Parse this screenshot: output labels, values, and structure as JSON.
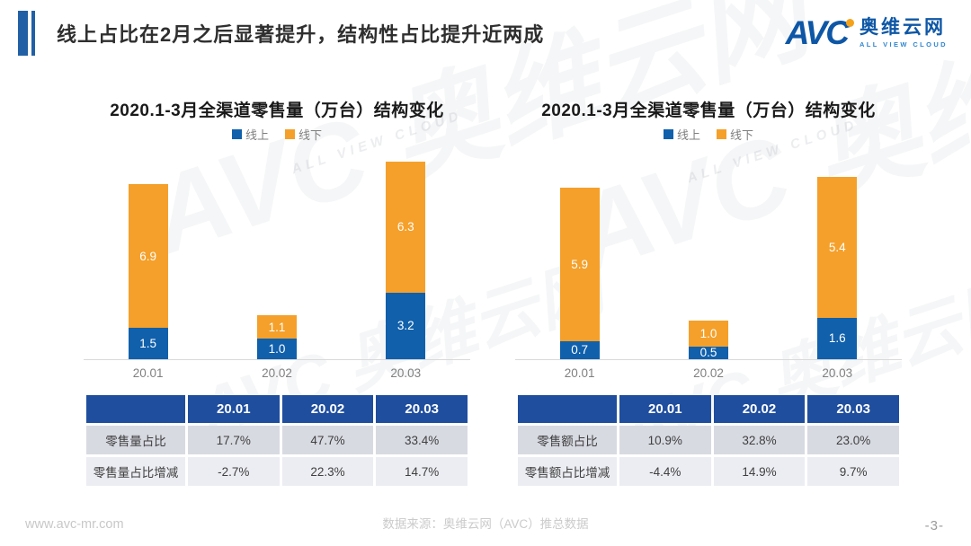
{
  "title": "线上占比在2月之后显著提升，结构性占比提升近两成",
  "logo": {
    "avc": "AVC",
    "cn": "奥维云网",
    "en": "ALL VIEW CLOUD"
  },
  "colors": {
    "online": "#1060AC",
    "offline": "#F5A02A",
    "table_header": "#1F4E9E",
    "accent": "#2160A5"
  },
  "chart_data": [
    {
      "type": "bar",
      "stacked": true,
      "title": "2020.1-3月全渠道零售量（万台）结构变化",
      "categories": [
        "20.01",
        "20.02",
        "20.03"
      ],
      "series": [
        {
          "name": "线上",
          "color_key": "online",
          "values": [
            1.5,
            1.0,
            3.2
          ]
        },
        {
          "name": "线下",
          "color_key": "offline",
          "values": [
            6.9,
            1.1,
            6.3
          ]
        }
      ],
      "xlabel": "",
      "ylabel": "",
      "ylim": [
        0,
        10
      ],
      "grid": false,
      "legend_position": "top",
      "table": {
        "headers": [
          "",
          "20.01",
          "20.02",
          "20.03"
        ],
        "rows": [
          [
            "零售量占比",
            "17.7%",
            "47.7%",
            "33.4%"
          ],
          [
            "零售量占比增减",
            "-2.7%",
            "22.3%",
            "14.7%"
          ]
        ]
      }
    },
    {
      "type": "bar",
      "stacked": true,
      "title": "2020.1-3月全渠道零售量（万台）结构变化",
      "categories": [
        "20.01",
        "20.02",
        "20.03"
      ],
      "series": [
        {
          "name": "线上",
          "color_key": "online",
          "values": [
            0.7,
            0.5,
            1.6
          ]
        },
        {
          "name": "线下",
          "color_key": "offline",
          "values": [
            5.9,
            1.0,
            5.4
          ]
        }
      ],
      "xlabel": "",
      "ylabel": "",
      "ylim": [
        0,
        8
      ],
      "grid": false,
      "legend_position": "top",
      "table": {
        "headers": [
          "",
          "20.01",
          "20.02",
          "20.03"
        ],
        "rows": [
          [
            "零售额占比",
            "10.9%",
            "32.8%",
            "23.0%"
          ],
          [
            "零售额占比增减",
            "-4.4%",
            "14.9%",
            "9.7%"
          ]
        ]
      }
    }
  ],
  "footer": {
    "website": "www.avc-mr.com",
    "source": "数据来源：奥维云网（AVC）推总数据",
    "page": "-3-"
  },
  "watermark": {
    "text": "AVC 奥维云网",
    "subtext": "ALL VIEW CLOUD"
  }
}
